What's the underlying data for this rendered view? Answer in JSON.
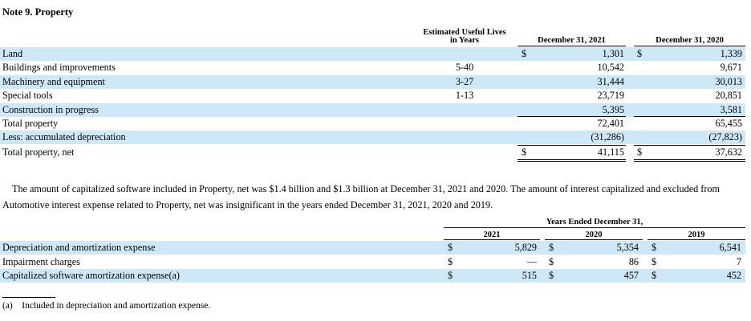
{
  "title": "Note 9. Property",
  "table1": {
    "headers": {
      "lives": [
        "Estimated Useful Lives",
        "in Years"
      ],
      "col1": "December 31, 2021",
      "col2": "December 31, 2020"
    },
    "currency": "$",
    "rows": [
      {
        "label": "Land",
        "life": "",
        "v1": "1,301",
        "v2": "1,339",
        "dollar": true,
        "band": true
      },
      {
        "label": "Buildings and improvements",
        "life": "5-40",
        "v1": "10,542",
        "v2": "9,671",
        "dollar": false,
        "band": false
      },
      {
        "label": "Machinery and equipment",
        "life": "3-27",
        "v1": "31,444",
        "v2": "30,013",
        "dollar": false,
        "band": true
      },
      {
        "label": "Special tools",
        "life": "1-13",
        "v1": "23,719",
        "v2": "20,851",
        "dollar": false,
        "band": false
      },
      {
        "label": "Construction in progress",
        "life": "",
        "v1": "5,395",
        "v2": "3,581",
        "dollar": false,
        "band": true
      },
      {
        "label": "Total property",
        "life": "",
        "v1": "72,401",
        "v2": "65,455",
        "dollar": false,
        "band": false
      },
      {
        "label": "Less: accumulated depreciation",
        "life": "",
        "v1": "(31,286)",
        "v2": "(27,823)",
        "dollar": false,
        "band": true
      },
      {
        "label": "Total property, net",
        "life": "",
        "v1": "41,115",
        "v2": "37,632",
        "dollar": true,
        "band": false
      }
    ]
  },
  "paragraph": "The amount of capitalized software included in Property, net was $1.4 billion and $1.3 billion at December 31, 2021 and 2020. The amount of interest capitalized and excluded from Automotive interest expense related to Property, net was insignificant in the years ended December 31, 2021, 2020 and 2019.",
  "table2": {
    "group_header": "Years Ended December 31,",
    "years": [
      "2021",
      "2020",
      "2019"
    ],
    "currency": "$",
    "rows": [
      {
        "label": "Depreciation and amortization expense",
        "vals": [
          "5,829",
          "5,354",
          "6,541"
        ],
        "band": true
      },
      {
        "label": "Impairment charges",
        "vals": [
          "—",
          "86",
          "7"
        ],
        "band": false
      },
      {
        "label": "Capitalized software amortization expense(a)",
        "vals": [
          "515",
          "457",
          "452"
        ],
        "band": true
      }
    ]
  },
  "footnote": {
    "marker": "(a)",
    "text": "Included in depreciation and amortization expense."
  },
  "colors": {
    "band": "#cfe8f7"
  }
}
